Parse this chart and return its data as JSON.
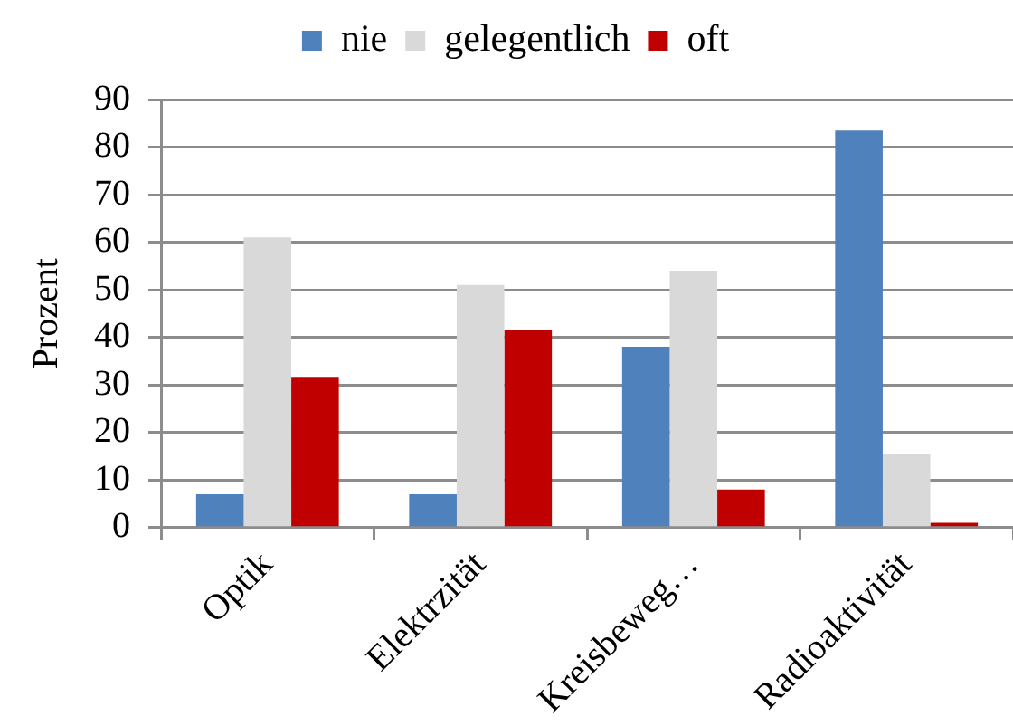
{
  "chart_data": {
    "type": "bar",
    "ylabel": "Prozent",
    "categories": [
      "Optik",
      "Elektrzität",
      "Kreisbeweg…",
      "Radioaktivität"
    ],
    "series": [
      {
        "name": "nie",
        "color": "#4f81bd",
        "values": [
          7,
          7,
          38,
          83.5
        ]
      },
      {
        "name": "gelegentlich",
        "color": "#d9d9d9",
        "values": [
          61,
          51,
          54,
          15.5
        ]
      },
      {
        "name": "oft",
        "color": "#c00000",
        "values": [
          31.5,
          41.5,
          8,
          1
        ]
      }
    ],
    "ylim": [
      0,
      90
    ],
    "yticks": [
      0,
      10,
      20,
      30,
      40,
      50,
      60,
      70,
      80,
      90
    ],
    "grid": "y",
    "legend": "top"
  }
}
